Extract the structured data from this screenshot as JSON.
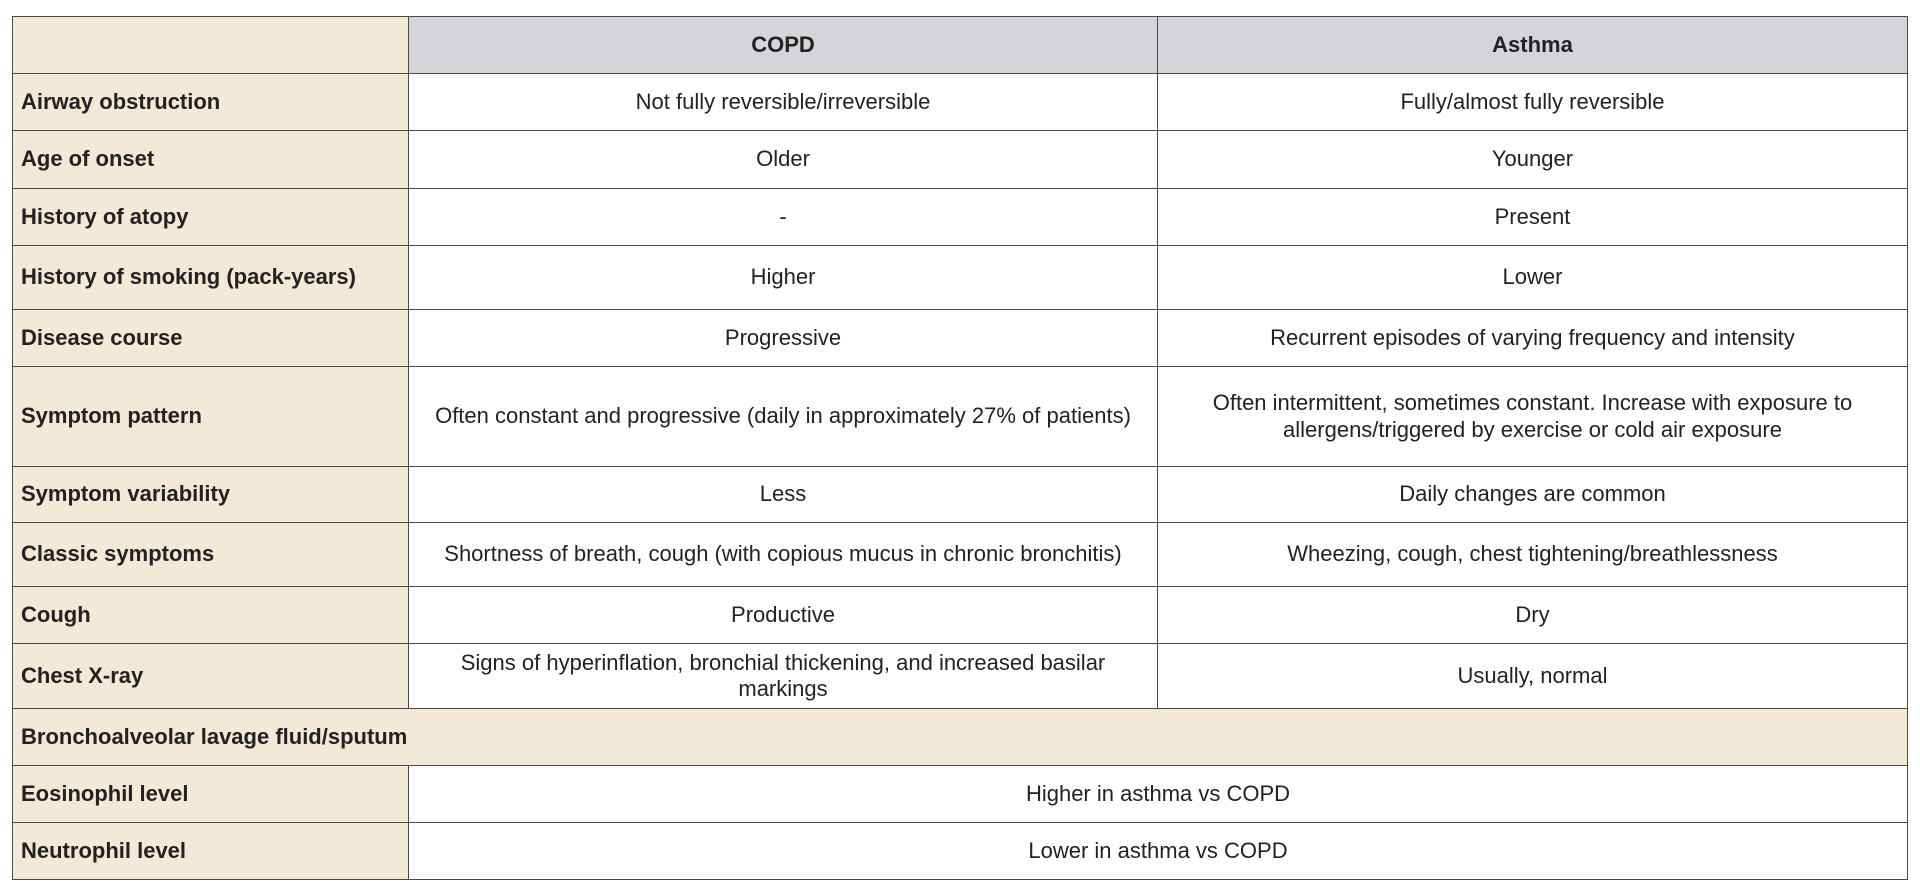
{
  "table": {
    "header": [
      "COPD",
      "Asthma"
    ],
    "rows": [
      [
        "Airway obstruction",
        "Not fully reversible/irreversible",
        "Fully/almost fully reversible"
      ],
      [
        "Age of onset",
        "Older",
        "Younger"
      ],
      [
        "History of atopy",
        "-",
        "Present"
      ],
      [
        "History of smoking (pack-years)",
        "Higher",
        "Lower"
      ],
      [
        "Disease course",
        "Progressive",
        "Recurrent episodes of varying frequency and intensity"
      ],
      [
        "Symptom pattern",
        "Often constant and progressive (daily in approximately 27% of patients)",
        "Often intermittent, sometimes constant. Increase with exposure to allergens/triggered by exercise or cold air exposure"
      ],
      [
        "Symptom variability",
        "Less",
        "Daily changes are common"
      ],
      [
        "Classic symptoms",
        "Shortness of breath, cough (with copious mucus in chronic bronchitis)",
        "Wheezing, cough, chest tightening/breathlessness"
      ],
      [
        "Cough",
        "Productive",
        "Dry"
      ],
      [
        "Chest X-ray",
        "Signs of hyperinflation, bronchial thickening, and increased basilar markings",
        "Usually, normal"
      ]
    ],
    "section": "Bronchoalveolar lavage fluid/sputum",
    "merged_rows": [
      [
        "Eosinophil level",
        "Higher in asthma vs COPD"
      ],
      [
        "Neutrophil level",
        "Lower in asthma vs COPD"
      ]
    ]
  }
}
